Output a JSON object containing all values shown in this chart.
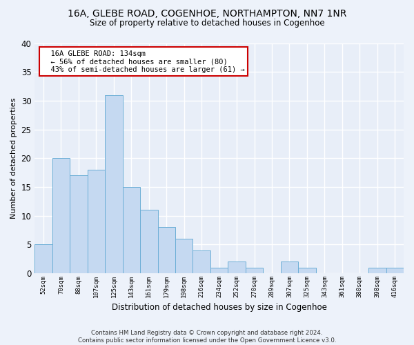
{
  "title1": "16A, GLEBE ROAD, COGENHOE, NORTHAMPTON, NN7 1NR",
  "title2": "Size of property relative to detached houses in Cogenhoe",
  "xlabel": "Distribution of detached houses by size in Cogenhoe",
  "ylabel": "Number of detached properties",
  "categories": [
    "52sqm",
    "70sqm",
    "88sqm",
    "107sqm",
    "125sqm",
    "143sqm",
    "161sqm",
    "179sqm",
    "198sqm",
    "216sqm",
    "234sqm",
    "252sqm",
    "270sqm",
    "289sqm",
    "307sqm",
    "325sqm",
    "343sqm",
    "361sqm",
    "380sqm",
    "398sqm",
    "416sqm"
  ],
  "values": [
    5,
    20,
    17,
    18,
    31,
    15,
    11,
    8,
    6,
    4,
    1,
    2,
    1,
    0,
    2,
    1,
    0,
    0,
    0,
    1,
    1
  ],
  "bar_color": "#c5d9f1",
  "bar_edge_color": "#6baed6",
  "annotation_title": "16A GLEBE ROAD: 134sqm",
  "annotation_line1": "← 56% of detached houses are smaller (80)",
  "annotation_line2": "43% of semi-detached houses are larger (61) →",
  "annotation_box_color": "#ffffff",
  "annotation_box_edge_color": "#cc0000",
  "ylim": [
    0,
    40
  ],
  "yticks": [
    0,
    5,
    10,
    15,
    20,
    25,
    30,
    35,
    40
  ],
  "fig_bg_color": "#edf2fa",
  "plot_bg_color": "#e8eef8",
  "grid_color": "#ffffff",
  "footer1": "Contains HM Land Registry data © Crown copyright and database right 2024.",
  "footer2": "Contains public sector information licensed under the Open Government Licence v3.0."
}
